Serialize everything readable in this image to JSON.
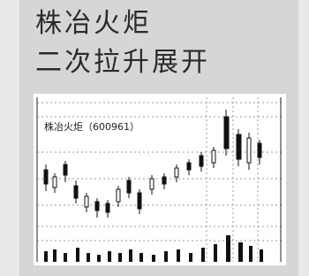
{
  "header": {
    "lines": [
      "株冶火炬",
      "二次拉升展开"
    ]
  },
  "figure": {
    "caption": "株冶火炬（600961）"
  }
}
